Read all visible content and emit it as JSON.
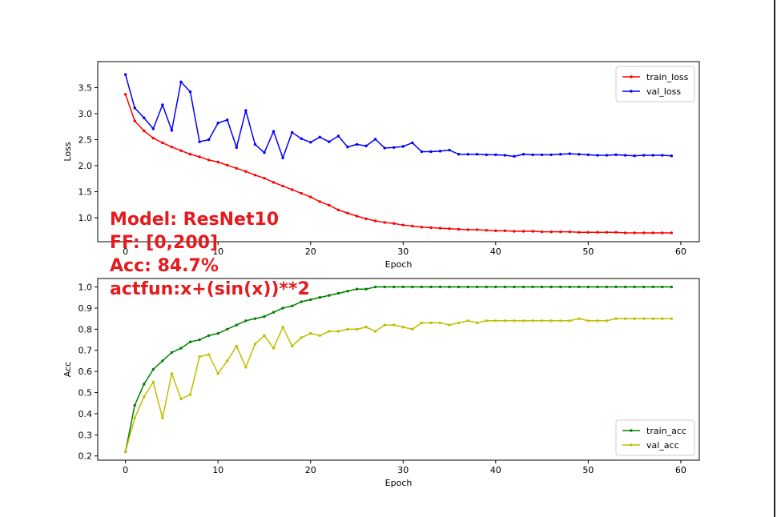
{
  "annotation": {
    "model": "Model: ResNet10",
    "ff": "FF: [0,200]",
    "acc": "Acc: 84.7%",
    "actfun": "actfun:x+(sin(x))**2"
  },
  "chart_data": [
    {
      "type": "line",
      "xlabel": "Epoch",
      "ylabel": "Loss",
      "xlim": [
        -3,
        62
      ],
      "ylim": [
        0.54,
        4.0
      ],
      "xticks": [
        0,
        10,
        20,
        30,
        40,
        50,
        60
      ],
      "yticks": [
        1.0,
        1.5,
        2.0,
        2.5,
        3.0,
        3.5
      ],
      "grid": false,
      "legend_position": "upper right",
      "x": [
        0,
        1,
        2,
        3,
        4,
        5,
        6,
        7,
        8,
        9,
        10,
        11,
        12,
        13,
        14,
        15,
        16,
        17,
        18,
        19,
        20,
        21,
        22,
        23,
        24,
        25,
        26,
        27,
        28,
        29,
        30,
        31,
        32,
        33,
        34,
        35,
        36,
        37,
        38,
        39,
        40,
        41,
        42,
        43,
        44,
        45,
        46,
        47,
        48,
        49,
        50,
        51,
        52,
        53,
        54,
        55,
        56,
        57,
        58,
        59
      ],
      "series": [
        {
          "name": "train_loss",
          "color": "#ff0000",
          "values": [
            3.37,
            2.86,
            2.67,
            2.53,
            2.44,
            2.36,
            2.29,
            2.22,
            2.17,
            2.11,
            2.07,
            2.01,
            1.95,
            1.89,
            1.82,
            1.76,
            1.68,
            1.61,
            1.54,
            1.47,
            1.4,
            1.31,
            1.24,
            1.15,
            1.09,
            1.03,
            0.98,
            0.94,
            0.91,
            0.89,
            0.86,
            0.84,
            0.82,
            0.81,
            0.8,
            0.79,
            0.78,
            0.77,
            0.77,
            0.76,
            0.75,
            0.75,
            0.74,
            0.74,
            0.74,
            0.73,
            0.73,
            0.73,
            0.73,
            0.72,
            0.72,
            0.72,
            0.72,
            0.72,
            0.71,
            0.71,
            0.71,
            0.71,
            0.71,
            0.71
          ]
        },
        {
          "name": "val_loss",
          "color": "#0000ff",
          "values": [
            3.75,
            3.11,
            2.92,
            2.71,
            3.17,
            2.68,
            3.61,
            3.42,
            2.46,
            2.5,
            2.82,
            2.88,
            2.35,
            3.06,
            2.41,
            2.25,
            2.66,
            2.15,
            2.64,
            2.52,
            2.45,
            2.55,
            2.46,
            2.57,
            2.36,
            2.41,
            2.38,
            2.51,
            2.34,
            2.35,
            2.37,
            2.44,
            2.27,
            2.27,
            2.28,
            2.3,
            2.22,
            2.22,
            2.22,
            2.21,
            2.21,
            2.2,
            2.18,
            2.22,
            2.21,
            2.21,
            2.21,
            2.22,
            2.23,
            2.22,
            2.21,
            2.2,
            2.2,
            2.21,
            2.2,
            2.19,
            2.2,
            2.2,
            2.2,
            2.19
          ]
        }
      ]
    },
    {
      "type": "line",
      "xlabel": "Epoch",
      "ylabel": "Acc",
      "xlim": [
        -3,
        62
      ],
      "ylim": [
        0.18,
        1.04
      ],
      "xticks": [
        0,
        10,
        20,
        30,
        40,
        50,
        60
      ],
      "yticks": [
        0.2,
        0.3,
        0.4,
        0.5,
        0.6,
        0.7,
        0.8,
        0.9,
        1.0
      ],
      "grid": false,
      "legend_position": "lower right",
      "x": [
        0,
        1,
        2,
        3,
        4,
        5,
        6,
        7,
        8,
        9,
        10,
        11,
        12,
        13,
        14,
        15,
        16,
        17,
        18,
        19,
        20,
        21,
        22,
        23,
        24,
        25,
        26,
        27,
        28,
        29,
        30,
        31,
        32,
        33,
        34,
        35,
        36,
        37,
        38,
        39,
        40,
        41,
        42,
        43,
        44,
        45,
        46,
        47,
        48,
        49,
        50,
        51,
        52,
        53,
        54,
        55,
        56,
        57,
        58,
        59
      ],
      "series": [
        {
          "name": "train_acc",
          "color": "#008000",
          "values": [
            0.22,
            0.44,
            0.54,
            0.61,
            0.65,
            0.69,
            0.71,
            0.74,
            0.75,
            0.77,
            0.78,
            0.8,
            0.82,
            0.84,
            0.85,
            0.86,
            0.88,
            0.9,
            0.91,
            0.93,
            0.94,
            0.95,
            0.96,
            0.97,
            0.98,
            0.99,
            0.99,
            1.0,
            1.0,
            1.0,
            1.0,
            1.0,
            1.0,
            1.0,
            1.0,
            1.0,
            1.0,
            1.0,
            1.0,
            1.0,
            1.0,
            1.0,
            1.0,
            1.0,
            1.0,
            1.0,
            1.0,
            1.0,
            1.0,
            1.0,
            1.0,
            1.0,
            1.0,
            1.0,
            1.0,
            1.0,
            1.0,
            1.0,
            1.0,
            1.0
          ]
        },
        {
          "name": "val_acc",
          "color": "#bfbf00",
          "values": [
            0.22,
            0.38,
            0.48,
            0.55,
            0.38,
            0.59,
            0.47,
            0.49,
            0.67,
            0.68,
            0.59,
            0.65,
            0.72,
            0.62,
            0.73,
            0.77,
            0.71,
            0.81,
            0.72,
            0.76,
            0.78,
            0.77,
            0.79,
            0.79,
            0.8,
            0.8,
            0.81,
            0.79,
            0.82,
            0.82,
            0.81,
            0.8,
            0.83,
            0.83,
            0.83,
            0.82,
            0.83,
            0.84,
            0.83,
            0.84,
            0.84,
            0.84,
            0.84,
            0.84,
            0.84,
            0.84,
            0.84,
            0.84,
            0.84,
            0.85,
            0.84,
            0.84,
            0.84,
            0.85,
            0.85,
            0.85,
            0.85,
            0.85,
            0.85,
            0.85
          ]
        }
      ]
    }
  ]
}
